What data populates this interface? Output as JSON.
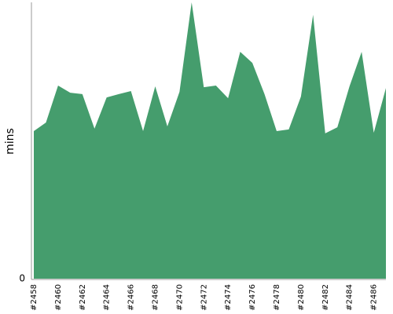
{
  "chart_data": {
    "type": "area",
    "y_label": "mins",
    "categories": [
      "#2458",
      null,
      "#2460",
      null,
      "#2462",
      null,
      "#2464",
      null,
      "#2466",
      null,
      "#2468",
      null,
      "#2470",
      null,
      "#2472",
      null,
      "#2474",
      null,
      "#2476",
      null,
      "#2478",
      null,
      "#2480",
      null,
      "#2482",
      null,
      "#2484",
      null,
      "#2486",
      null
    ],
    "values": [
      53.4,
      56.5,
      69.9,
      67.3,
      66.8,
      54.3,
      65.6,
      66.8,
      67.9,
      53.4,
      69.6,
      55.1,
      67.6,
      100,
      69.3,
      69.9,
      65.3,
      82.1,
      78.1,
      66.8,
      53.4,
      54.0,
      65.9,
      95.5,
      52.6,
      54.8,
      69.6,
      82.1,
      52.8,
      69.0
    ],
    "color": "#459d6d",
    "ylim": [
      0,
      100
    ],
    "yticks": [
      0
    ]
  }
}
